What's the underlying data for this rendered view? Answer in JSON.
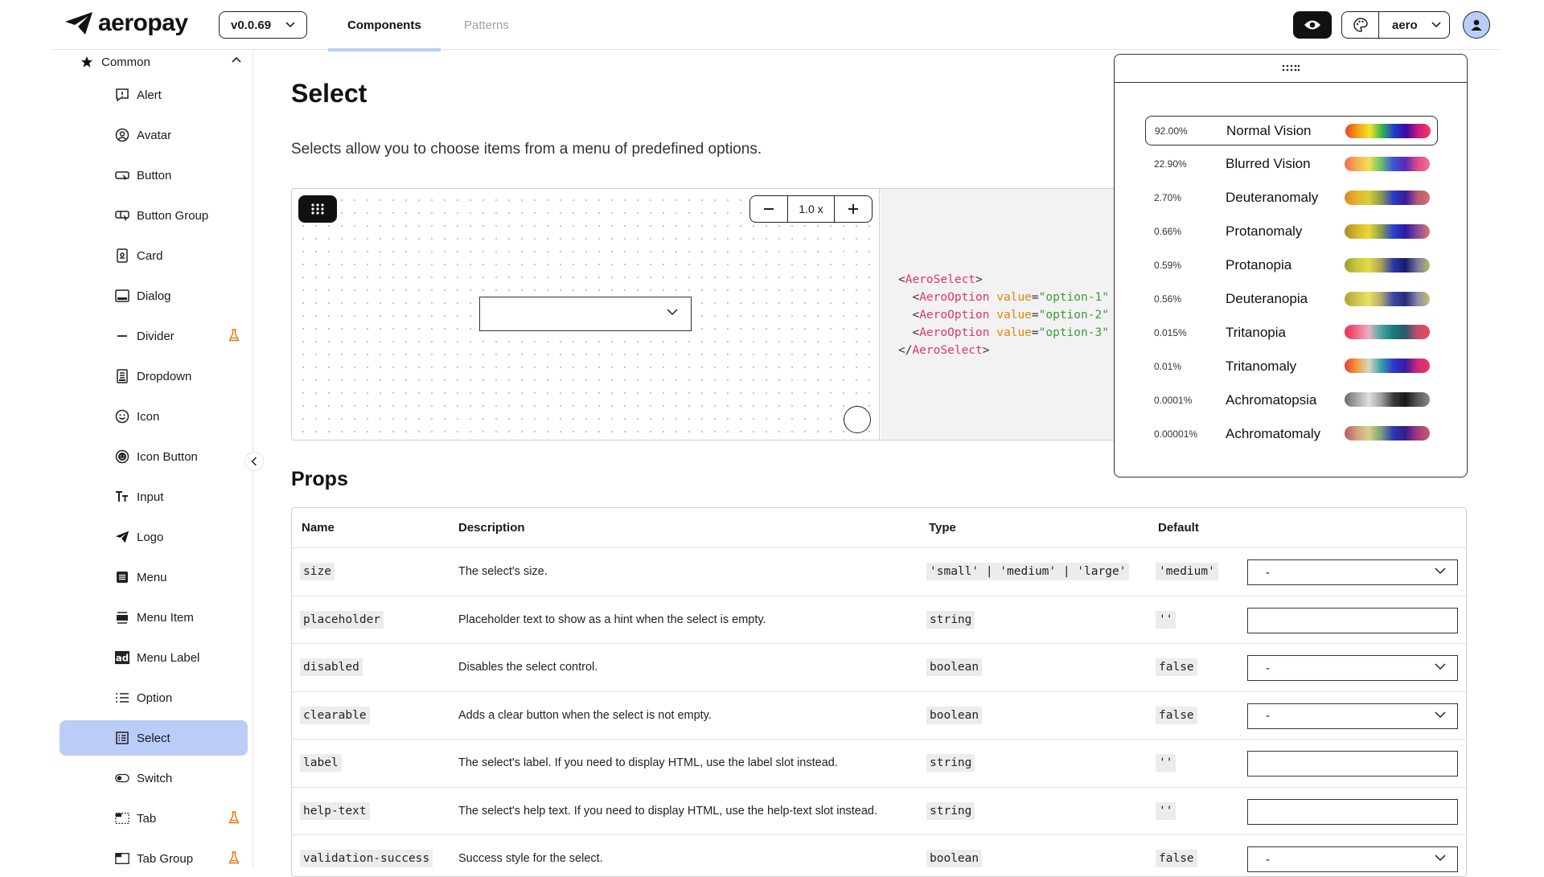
{
  "header": {
    "brand": "aeropay",
    "version": "v0.0.69",
    "tabs": [
      {
        "label": "Components",
        "active": true
      },
      {
        "label": "Patterns",
        "active": false
      }
    ],
    "theme": "aero",
    "accent_color": "#b9cdf6"
  },
  "sidebar": {
    "group_label": "Common",
    "items": [
      {
        "label": "Alert",
        "icon": "alert-square-icon",
        "experimental": false
      },
      {
        "label": "Avatar",
        "icon": "user-circle-icon",
        "experimental": false
      },
      {
        "label": "Button",
        "icon": "button-icon",
        "experimental": false
      },
      {
        "label": "Button Group",
        "icon": "button-group-icon",
        "experimental": false
      },
      {
        "label": "Card",
        "icon": "card-icon",
        "experimental": false
      },
      {
        "label": "Dialog",
        "icon": "dialog-icon",
        "experimental": false
      },
      {
        "label": "Divider",
        "icon": "divider-icon",
        "experimental": true
      },
      {
        "label": "Dropdown",
        "icon": "dropdown-icon",
        "experimental": false
      },
      {
        "label": "Icon",
        "icon": "smiley-icon",
        "experimental": false
      },
      {
        "label": "Icon Button",
        "icon": "smiley-filled-icon",
        "experimental": false
      },
      {
        "label": "Input",
        "icon": "text-input-icon",
        "experimental": false
      },
      {
        "label": "Logo",
        "icon": "paper-plane-icon",
        "experimental": false
      },
      {
        "label": "Menu",
        "icon": "menu-icon",
        "experimental": false
      },
      {
        "label": "Menu Item",
        "icon": "menu-item-icon",
        "experimental": false
      },
      {
        "label": "Menu Label",
        "icon": "ad-label-icon",
        "experimental": false
      },
      {
        "label": "Option",
        "icon": "list-icon",
        "experimental": false
      },
      {
        "label": "Select",
        "icon": "select-list-icon",
        "experimental": false,
        "selected": true
      },
      {
        "label": "Switch",
        "icon": "toggle-icon",
        "experimental": false
      },
      {
        "label": "Tab",
        "icon": "tab-icon",
        "experimental": true
      },
      {
        "label": "Tab Group",
        "icon": "tab-group-icon",
        "experimental": true
      }
    ]
  },
  "main": {
    "title": "Select",
    "description": "Selects allow you to choose items from a menu of predefined options.",
    "zoom": "1.0 x",
    "code": {
      "line1_open": "<",
      "tag_select": "AeroSelect",
      "tag_option": "AeroOption",
      "attr": "value",
      "values": [
        "\"option-1\"",
        "\"option-2\"",
        "\"option-3\""
      ]
    },
    "props_title": "Props",
    "table": {
      "headers": [
        "Name",
        "Description",
        "Type",
        "Default"
      ],
      "rows": [
        {
          "name": "size",
          "description": "The select's size.",
          "type": "'small' | 'medium' | 'large'",
          "default": "'medium'",
          "control": "select",
          "control_value": "-"
        },
        {
          "name": "placeholder",
          "description": "Placeholder text to show as a hint when the select is empty.",
          "type": "string",
          "default": "''",
          "control": "input",
          "control_value": ""
        },
        {
          "name": "disabled",
          "description": "Disables the select control.",
          "type": "boolean",
          "default": "false",
          "control": "select",
          "control_value": "-"
        },
        {
          "name": "clearable",
          "description": "Adds a clear button when the select is not empty.",
          "type": "boolean",
          "default": "false",
          "control": "select",
          "control_value": "-"
        },
        {
          "name": "label",
          "description": "The select's label. If you need to display HTML, use the label slot instead.",
          "type": "string",
          "default": "''",
          "control": "input",
          "control_value": ""
        },
        {
          "name": "help-text",
          "description": "The select's help text. If you need to display HTML, use the help-text slot instead.",
          "type": "string",
          "default": "''",
          "control": "input",
          "control_value": ""
        },
        {
          "name": "validation-success",
          "description": "Success style for the select.",
          "type": "boolean",
          "default": "false",
          "control": "select",
          "control_value": "-"
        }
      ]
    }
  },
  "vision_panel": {
    "items": [
      {
        "percent": "92.00%",
        "label": "Normal Vision",
        "active": true,
        "gradient": [
          "#e8412a",
          "#f3a016",
          "#f5e22a",
          "#39b54a",
          "#1f3bd0",
          "#3a0aa0",
          "#d21a7a",
          "#ef3e5c"
        ]
      },
      {
        "percent": "22.90%",
        "label": "Blurred Vision",
        "active": false,
        "gradient": [
          "#f06a5a",
          "#f3b04a",
          "#f1df5a",
          "#6bbf6a",
          "#3b54d8",
          "#5a2ab8",
          "#e04a8a",
          "#f5708a"
        ]
      },
      {
        "percent": "2.70%",
        "label": "Deuteranomaly",
        "active": false,
        "gradient": [
          "#d88a2a",
          "#e6b52a",
          "#d6cf3a",
          "#8a9a4a",
          "#2a3cc8",
          "#3a1a9a",
          "#b85a7a",
          "#d8706a"
        ]
      },
      {
        "percent": "0.66%",
        "label": "Protanomaly",
        "active": false,
        "gradient": [
          "#a88a2a",
          "#d6b82a",
          "#e8d83a",
          "#8aa04a",
          "#2a40d0",
          "#2a1aa0",
          "#8a4a9a",
          "#d8786a"
        ]
      },
      {
        "percent": "0.59%",
        "label": "Protanopia",
        "active": false,
        "gradient": [
          "#9a9a3a",
          "#c8c83a",
          "#e0da4a",
          "#a8a25a",
          "#2a3aa8",
          "#1a1a6a",
          "#7a7aa0",
          "#b8b86a"
        ]
      },
      {
        "percent": "0.56%",
        "label": "Deuteranopia",
        "active": false,
        "gradient": [
          "#a8a23a",
          "#d0c84a",
          "#e8e06a",
          "#b0aa6a",
          "#3a48a8",
          "#2a2a7a",
          "#8a8aaa",
          "#c8c070"
        ]
      },
      {
        "percent": "0.015%",
        "label": "Tritanopia",
        "active": false,
        "gradient": [
          "#e8304a",
          "#f06a8a",
          "#e8b0c0",
          "#4aa8a0",
          "#1a7878",
          "#2a5a6a",
          "#c84a6a",
          "#e84a5a"
        ]
      },
      {
        "percent": "0.01%",
        "label": "Tritanomaly",
        "active": false,
        "gradient": [
          "#ea3a3a",
          "#f29a3a",
          "#d6d8c8",
          "#3aa0a8",
          "#2a3ad0",
          "#3a1aa0",
          "#d02a7a",
          "#ea3a5a"
        ]
      },
      {
        "percent": "0.0001%",
        "label": "Achromatopsia",
        "active": false,
        "gradient": [
          "#6a6a6a",
          "#a8a8a8",
          "#e0e0e0",
          "#a0a0a0",
          "#3a3a3a",
          "#1a1a1a",
          "#5a5a5a",
          "#8a8a8a"
        ]
      },
      {
        "percent": "0.00001%",
        "label": "Achromatomaly",
        "active": false,
        "gradient": [
          "#b85a6a",
          "#d0a07a",
          "#d8d08a",
          "#7aa07a",
          "#2a3ab0",
          "#3a1a8a",
          "#a83a7a",
          "#c05a7a"
        ]
      }
    ]
  }
}
